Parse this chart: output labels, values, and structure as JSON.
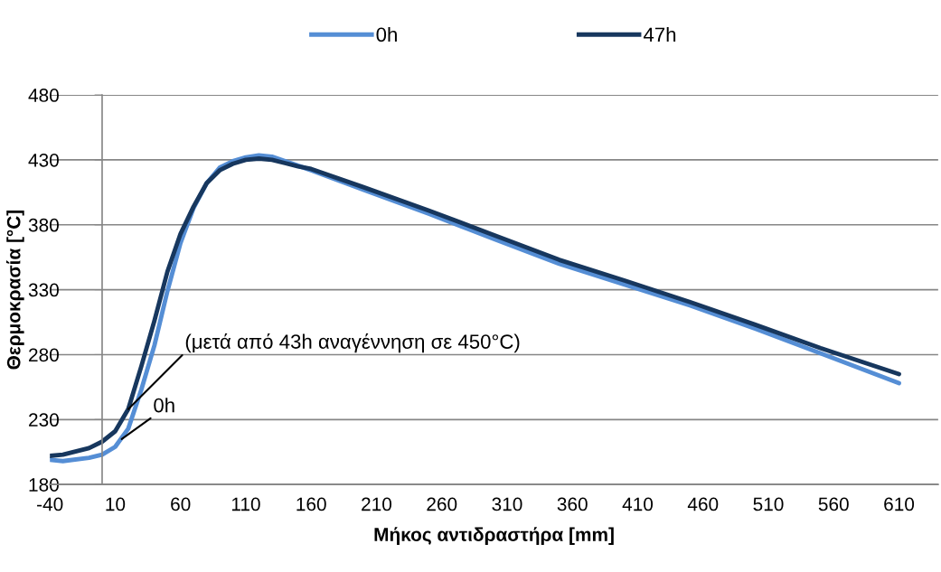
{
  "chart_data": {
    "type": "line",
    "xlabel": "Μήκος αντιδραστήρα [mm]",
    "ylabel": "Θερμοκρασία [°C]",
    "series": [
      {
        "name": "0h",
        "color": "#558ed5",
        "x": [
          -40,
          -30,
          -10,
          0,
          10,
          20,
          30,
          40,
          50,
          60,
          70,
          80,
          90,
          100,
          110,
          120,
          130,
          140,
          150,
          160,
          200,
          250,
          300,
          350,
          400,
          450,
          500,
          550,
          610
        ],
        "values": [
          199,
          198,
          200.5,
          203,
          209,
          223,
          253,
          287,
          329,
          366,
          393,
          412,
          424,
          429,
          432,
          433.5,
          432.5,
          429,
          425.5,
          422,
          407,
          388.6,
          369,
          350,
          334,
          318,
          300,
          281,
          258
        ]
      },
      {
        "name": "47h",
        "color": "#17375e",
        "x": [
          -40,
          -30,
          -10,
          0,
          10,
          20,
          30,
          40,
          50,
          60,
          70,
          80,
          90,
          100,
          110,
          120,
          130,
          140,
          150,
          160,
          200,
          250,
          300,
          350,
          400,
          450,
          500,
          550,
          610
        ],
        "values": [
          202,
          203,
          208,
          213,
          221,
          238,
          271,
          306,
          344,
          373,
          394,
          412,
          422,
          427,
          430,
          431,
          430,
          427.5,
          425,
          423,
          409,
          391,
          372,
          353,
          337,
          320.5,
          303,
          285,
          265
        ]
      }
    ],
    "annotations": [
      {
        "text": "(μετά από 43h αναγέννηση σε 450°C)",
        "x": 20,
        "y": 238
      },
      {
        "text": "0h",
        "x": 15,
        "y": 215
      }
    ],
    "xlim": [
      -40,
      640
    ],
    "xticks": [
      -40,
      10,
      60,
      110,
      160,
      210,
      260,
      310,
      360,
      410,
      460,
      510,
      560,
      610
    ],
    "ylim": [
      180,
      480
    ],
    "yticks": [
      180,
      230,
      280,
      330,
      380,
      430,
      480
    ],
    "grid": "y",
    "legend": "top",
    "marker": "none",
    "line_style": "solid"
  }
}
